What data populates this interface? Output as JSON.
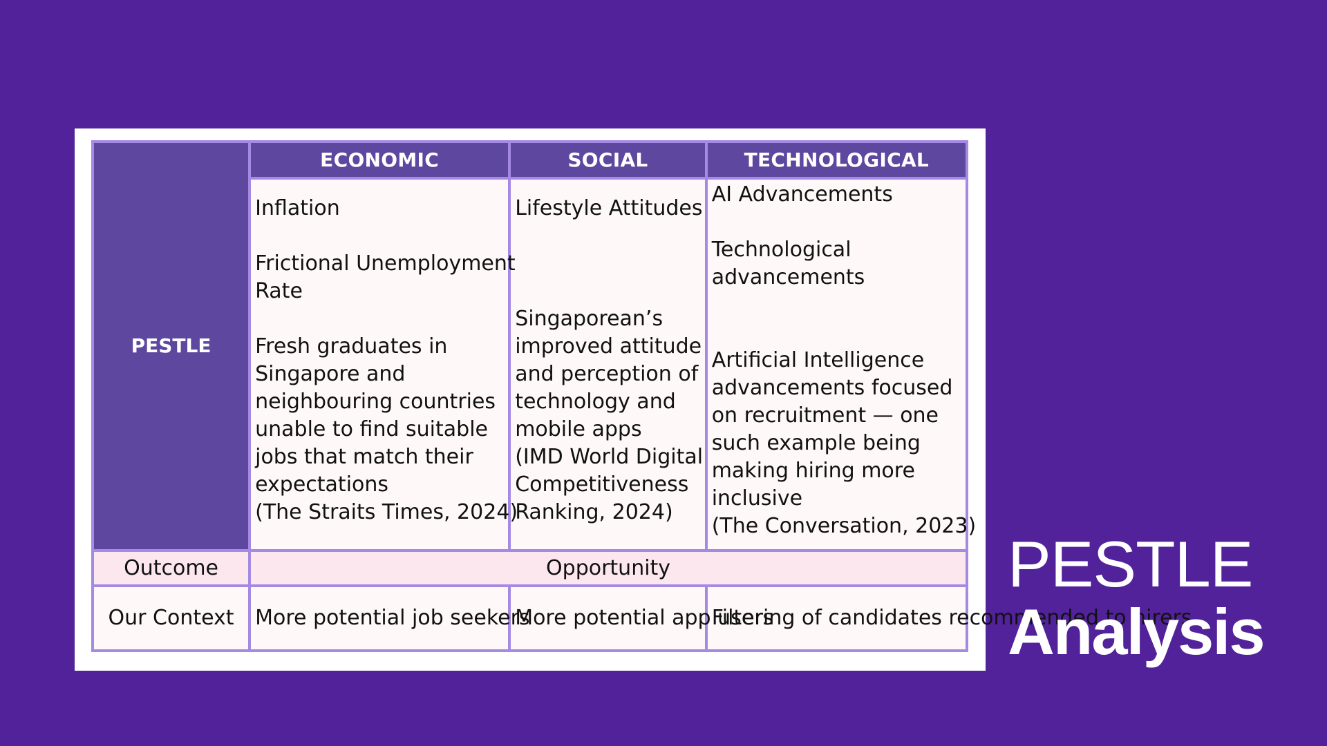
{
  "table": {
    "columns": [
      "ECONOMIC",
      "SOCIAL",
      "TECHNOLOGICAL"
    ],
    "row_header": "PESTLE",
    "economic": {
      "line1": "Inflation",
      "line2a": "Frictional Unemployment",
      "line2b": "Rate",
      "line3": [
        "Fresh graduates in",
        "Singapore and",
        "neighbouring countries",
        "unable to find suitable",
        "jobs that match their",
        "expectations",
        "(The Straits Times, 2024)"
      ]
    },
    "social": {
      "line1": "Lifestyle Attitudes",
      "line2": [
        "Singaporean’s",
        "improved attitude",
        "and perception of",
        "technology and",
        "mobile apps",
        "(IMD World Digital",
        "Competitiveness",
        "Ranking, 2024)"
      ]
    },
    "technological": {
      "line1": "AI Advancements",
      "line2a": "Technological",
      "line2b": "advancements",
      "line3": [
        "Artificial Intelligence",
        "advancements focused",
        "on recruitment — one",
        "such example being",
        "making hiring more",
        "inclusive",
        "(The Conversation, 2023)"
      ]
    },
    "outcome": {
      "label": "Outcome",
      "value": "Opportunity"
    },
    "context": {
      "label": "Our Context",
      "economic": [
        "More potential job",
        "seekers"
      ],
      "social": [
        "More potential app",
        "users"
      ],
      "technological": [
        "Filtering of candidates",
        "recommended to hirers"
      ]
    }
  },
  "slide_title": {
    "line1": "PESTLE",
    "line2": "Analysis"
  },
  "colors": {
    "background": "#52229a",
    "header": "#5e479f",
    "border": "#a58ae4",
    "outcome_row": "#fde7ef"
  }
}
